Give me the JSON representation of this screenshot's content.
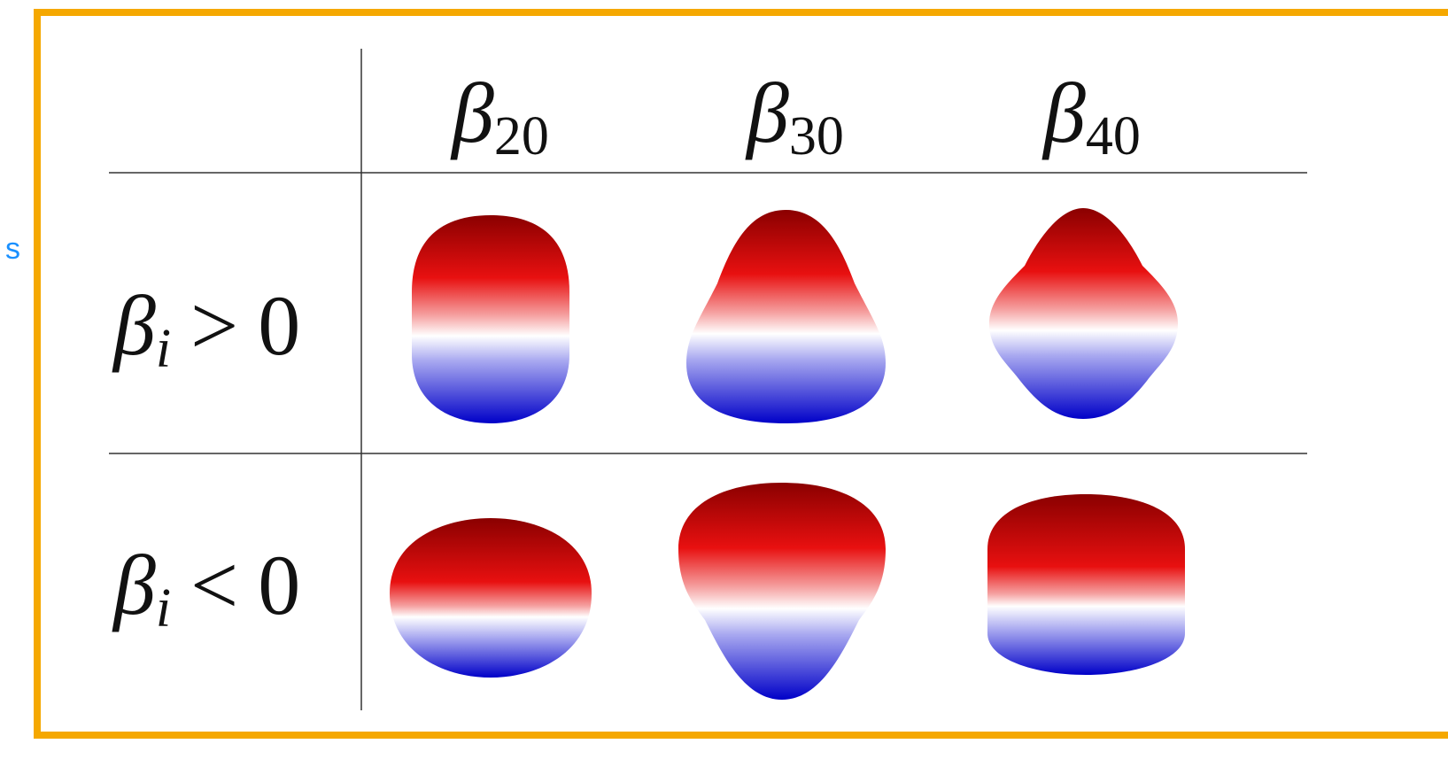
{
  "side_label": "s",
  "table": {
    "columns": [
      {
        "symbol": "β",
        "subscript": "20"
      },
      {
        "symbol": "β",
        "subscript": "30"
      },
      {
        "symbol": "β",
        "subscript": "40"
      }
    ],
    "rows": [
      {
        "symbol": "β",
        "subscript": "i",
        "relation": ">",
        "value": "0"
      },
      {
        "symbol": "β",
        "subscript": "i",
        "relation": "<",
        "value": "0"
      }
    ]
  }
}
